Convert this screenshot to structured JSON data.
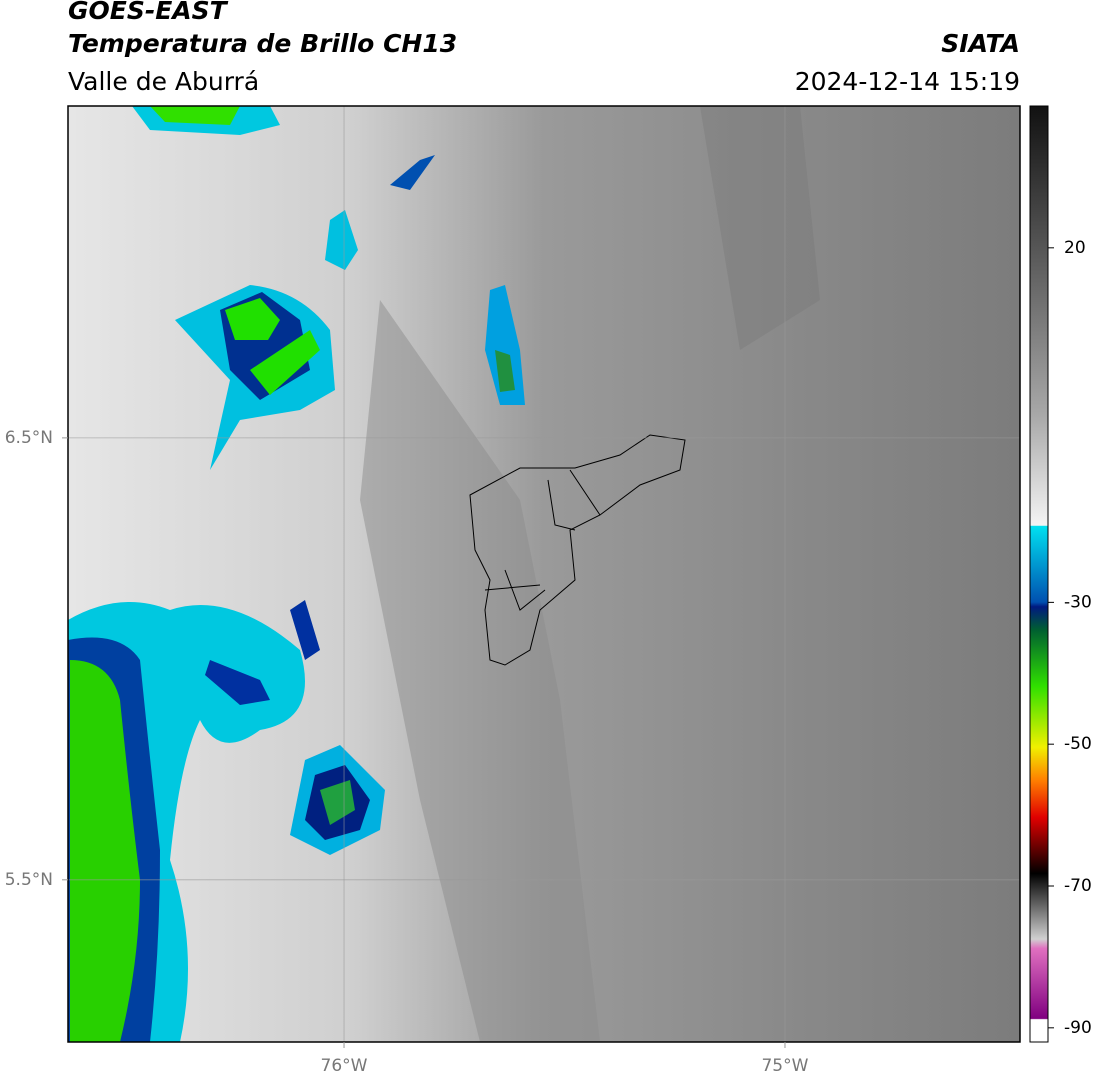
{
  "header": {
    "title": "GOES-EAST",
    "subtitle": "Temperatura de Brillo CH13",
    "region": "Valle de Aburrá",
    "source": "SIATA",
    "timestamp": "2024-12-14 15:19"
  },
  "map": {
    "xlim": [
      -76.626,
      -74.467
    ],
    "ylim": [
      5.133,
      7.251
    ],
    "xticks": [
      {
        "value": -76,
        "label": "76°W"
      },
      {
        "value": -75,
        "label": "75°W"
      }
    ],
    "yticks": [
      {
        "value": 6.5,
        "label": "6.5°N"
      },
      {
        "value": 5.5,
        "label": "5.5°N"
      }
    ],
    "grid": true
  },
  "colorbar": {
    "lim": [
      -92,
      40
    ],
    "ticks": [
      20,
      -30,
      -50,
      -70,
      -90
    ]
  }
}
